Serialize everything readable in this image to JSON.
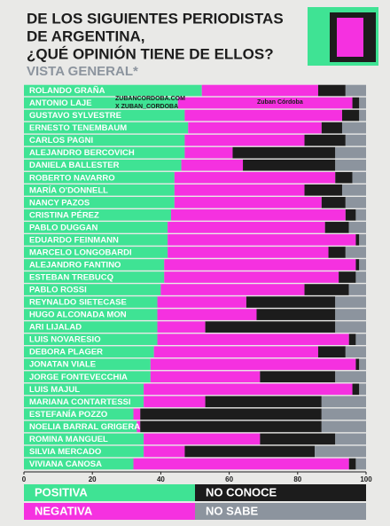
{
  "chart_data": {
    "type": "stacked-bar",
    "orientation": "horizontal",
    "title": [
      "DE LOS SIGUIENTES PERIODISTAS",
      "DE ARGENTINA,",
      "¿QUÉ OPINIÓN TIENE DE ELLOS?"
    ],
    "subtitle": "VISTA GENERAL*",
    "categories": [
      "ROLANDO GRAÑA",
      "ANTONIO LAJE",
      "GUSTAVO SYLVESTRE",
      "ERNESTO TENEMBAUM",
      "CARLOS PAGNI",
      "ALEJANDRO BERCOVICH",
      "DANIELA BALLESTER",
      "ROBERTO NAVARRO",
      "MARÍA O'DONNELL",
      "NANCY PAZOS",
      "CRISTINA PÉREZ",
      "PABLO DUGGAN",
      "EDUARDO FEINMANN",
      "MARCELO LONGOBARDI",
      "ALEJANDRO FANTINO",
      "ESTEBAN TREBUCQ",
      "PABLO ROSSI",
      "REYNALDO SIETECASE",
      "HUGO ALCONADA MON",
      "ARI LIJALAD",
      "LUIS NOVARESIO",
      "DEBORA PLAGER",
      "JONATAN VIALE",
      "JORGE FONTEVECCHIA",
      "LUIS MAJUL",
      "MARIANA CONTARTESSI",
      "ESTEFANÍA POZZO",
      "NOELIA BARRAL GRIGERA",
      "ROMINA MANGUEL",
      "SILVIA MERCADO",
      "VIVIANA CANOSA"
    ],
    "series": [
      {
        "name": "POSITIVA",
        "color": "#3fe394",
        "values": [
          52,
          45,
          47,
          48,
          47,
          47,
          46,
          44,
          44,
          44,
          43,
          42,
          42,
          42,
          41,
          41,
          40,
          39,
          39,
          39,
          39,
          38,
          37,
          37,
          35,
          35,
          32,
          33,
          35,
          35,
          32
        ]
      },
      {
        "name": "NEGATIVA",
        "color": "#f531e0",
        "values": [
          34,
          51,
          46,
          39,
          35,
          14,
          18,
          47,
          38,
          43,
          51,
          46,
          55,
          47,
          56,
          51,
          42,
          26,
          29,
          14,
          56,
          48,
          60,
          32,
          61,
          18,
          2,
          1,
          34,
          12,
          63
        ]
      },
      {
        "name": "NO CONOCE",
        "color": "#1c1c1c",
        "values": [
          8,
          2,
          5,
          6,
          12,
          30,
          27,
          5,
          11,
          7,
          3,
          7,
          1,
          5,
          1,
          5,
          13,
          26,
          23,
          38,
          2,
          8,
          1,
          22,
          2,
          34,
          53,
          53,
          22,
          38,
          2
        ]
      },
      {
        "name": "NO SABE",
        "color": "#8c949e",
        "values": [
          6,
          2,
          2,
          7,
          6,
          9,
          9,
          4,
          7,
          6,
          3,
          5,
          2,
          6,
          2,
          3,
          5,
          9,
          9,
          9,
          3,
          6,
          2,
          9,
          2,
          13,
          13,
          13,
          9,
          15,
          3
        ]
      }
    ],
    "xlim": [
      0,
      100
    ],
    "xticks": [
      0,
      20,
      40,
      60,
      80,
      100
    ]
  },
  "watermark": {
    "site": "ZUBANCORDOBA.COM",
    "handle": "X ZUBAN_CORDOBA",
    "logo": "Zuban Córdoba"
  }
}
